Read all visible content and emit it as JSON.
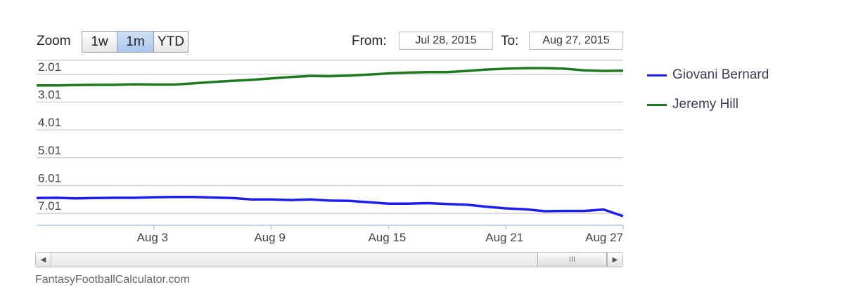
{
  "zoom": {
    "label": "Zoom",
    "buttons": [
      "1w",
      "1m",
      "YTD"
    ],
    "active": "1m"
  },
  "range": {
    "from_label": "From:",
    "from_value": "Jul 28, 2015",
    "to_label": "To:",
    "to_value": "Aug 27, 2015"
  },
  "scrollbar": {
    "thumb_glyph": "III"
  },
  "credits": "FantasyFootballCalculator.com",
  "chart_data": {
    "type": "line",
    "title": "",
    "xlabel": "",
    "ylabel": "",
    "y_reversed": true,
    "ylim": [
      1.71,
      7.61
    ],
    "yticks": [
      "2.01",
      "3.01",
      "4.01",
      "5.01",
      "6.01",
      "7.01"
    ],
    "xlim": [
      "2015-07-28",
      "2015-08-27"
    ],
    "xticks": [
      "Aug 3",
      "Aug 9",
      "Aug 15",
      "Aug 21",
      "Aug 27"
    ],
    "grid": true,
    "legend_position": "right",
    "series": [
      {
        "name": "Giovani Bernard",
        "color": "#1d1df0",
        "x": [
          "2015-07-28",
          "2015-07-29",
          "2015-07-30",
          "2015-07-31",
          "2015-08-01",
          "2015-08-02",
          "2015-08-03",
          "2015-08-04",
          "2015-08-05",
          "2015-08-06",
          "2015-08-07",
          "2015-08-08",
          "2015-08-09",
          "2015-08-10",
          "2015-08-11",
          "2015-08-12",
          "2015-08-13",
          "2015-08-14",
          "2015-08-15",
          "2015-08-16",
          "2015-08-17",
          "2015-08-18",
          "2015-08-19",
          "2015-08-20",
          "2015-08-21",
          "2015-08-22",
          "2015-08-23",
          "2015-08-24",
          "2015-08-25",
          "2015-08-26",
          "2015-08-27"
        ],
        "y": [
          6.66,
          6.65,
          6.67,
          6.66,
          6.65,
          6.65,
          6.63,
          6.62,
          6.62,
          6.64,
          6.66,
          6.71,
          6.71,
          6.73,
          6.71,
          6.75,
          6.76,
          6.81,
          6.86,
          6.86,
          6.84,
          6.87,
          6.9,
          6.97,
          7.03,
          7.06,
          7.13,
          7.12,
          7.12,
          7.07,
          7.31
        ]
      },
      {
        "name": "Jeremy Hill",
        "color": "#1f7a1f",
        "x": [
          "2015-07-28",
          "2015-07-29",
          "2015-07-30",
          "2015-07-31",
          "2015-08-01",
          "2015-08-02",
          "2015-08-03",
          "2015-08-04",
          "2015-08-05",
          "2015-08-06",
          "2015-08-07",
          "2015-08-08",
          "2015-08-09",
          "2015-08-10",
          "2015-08-11",
          "2015-08-12",
          "2015-08-13",
          "2015-08-14",
          "2015-08-15",
          "2015-08-16",
          "2015-08-17",
          "2015-08-18",
          "2015-08-19",
          "2015-08-20",
          "2015-08-21",
          "2015-08-22",
          "2015-08-23",
          "2015-08-24",
          "2015-08-25",
          "2015-08-26",
          "2015-08-27"
        ],
        "y": [
          2.61,
          2.61,
          2.6,
          2.59,
          2.59,
          2.57,
          2.58,
          2.58,
          2.54,
          2.49,
          2.45,
          2.41,
          2.36,
          2.31,
          2.27,
          2.28,
          2.26,
          2.22,
          2.18,
          2.15,
          2.13,
          2.13,
          2.09,
          2.04,
          2.01,
          1.99,
          1.99,
          2.01,
          2.07,
          2.09,
          2.08
        ]
      }
    ]
  }
}
